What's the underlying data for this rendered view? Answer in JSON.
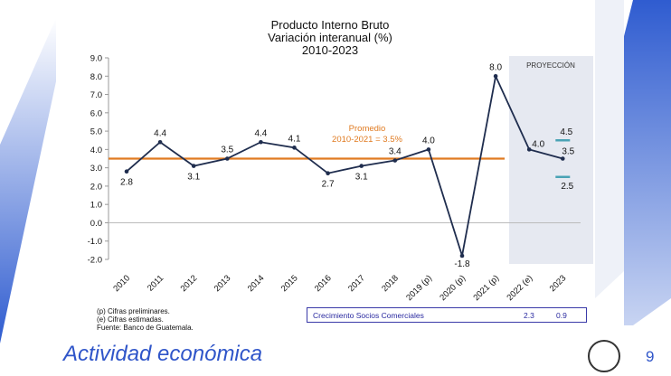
{
  "chart_data": {
    "type": "line",
    "title": "Producto Interno Bruto",
    "subtitle": "Variación interanual (%)",
    "period": "2010-2023",
    "categories": [
      "2010",
      "2011",
      "2012",
      "2013",
      "2014",
      "2015",
      "2016",
      "2017",
      "2018",
      "2019 (p)",
      "2020 (p)",
      "2021 (p)",
      "2022 (e)",
      "2023"
    ],
    "values": [
      2.8,
      4.4,
      3.1,
      3.5,
      4.4,
      4.1,
      2.7,
      3.1,
      3.4,
      4.0,
      -1.8,
      8.0,
      4.0,
      3.5
    ],
    "data_labels": [
      "2.8",
      "4.4",
      "3.1",
      "3.5",
      "4.4",
      "4.1",
      "2.7",
      "3.1",
      "3.4",
      "4.0",
      "-1.8",
      "8.0",
      "4.0",
      "3.5"
    ],
    "ylim": [
      -2.0,
      9.0
    ],
    "yticks": [
      "9.0",
      "8.0",
      "7.0",
      "6.0",
      "5.0",
      "4.0",
      "3.0",
      "2.0",
      "1.0",
      "0.0",
      "-1.0",
      "-2.0"
    ],
    "average": {
      "value": 3.5,
      "label_line1": "Promedio",
      "label_line2": "2010-2021 = 3.5%"
    },
    "projection": {
      "label": "PROYECCIÓN",
      "range_2023": {
        "high": 4.5,
        "low": 2.5,
        "high_label": "4.5",
        "low_label": "2.5"
      }
    },
    "colors": {
      "line": "#1f2d4e",
      "average": "#e07b22",
      "range": "#4aa3b5",
      "projection_bg": "#e6e9f1"
    }
  },
  "notes": [
    "(p) Cifras preliminares.",
    "(e) Cifras estimadas.",
    "Fuente: Banco de Guatemala."
  ],
  "partners": {
    "label": "Crecimiento Socios Comerciales",
    "v2022": "2.3",
    "v2023": "0.9"
  },
  "footer": {
    "section": "Actividad económica",
    "page": "9"
  }
}
